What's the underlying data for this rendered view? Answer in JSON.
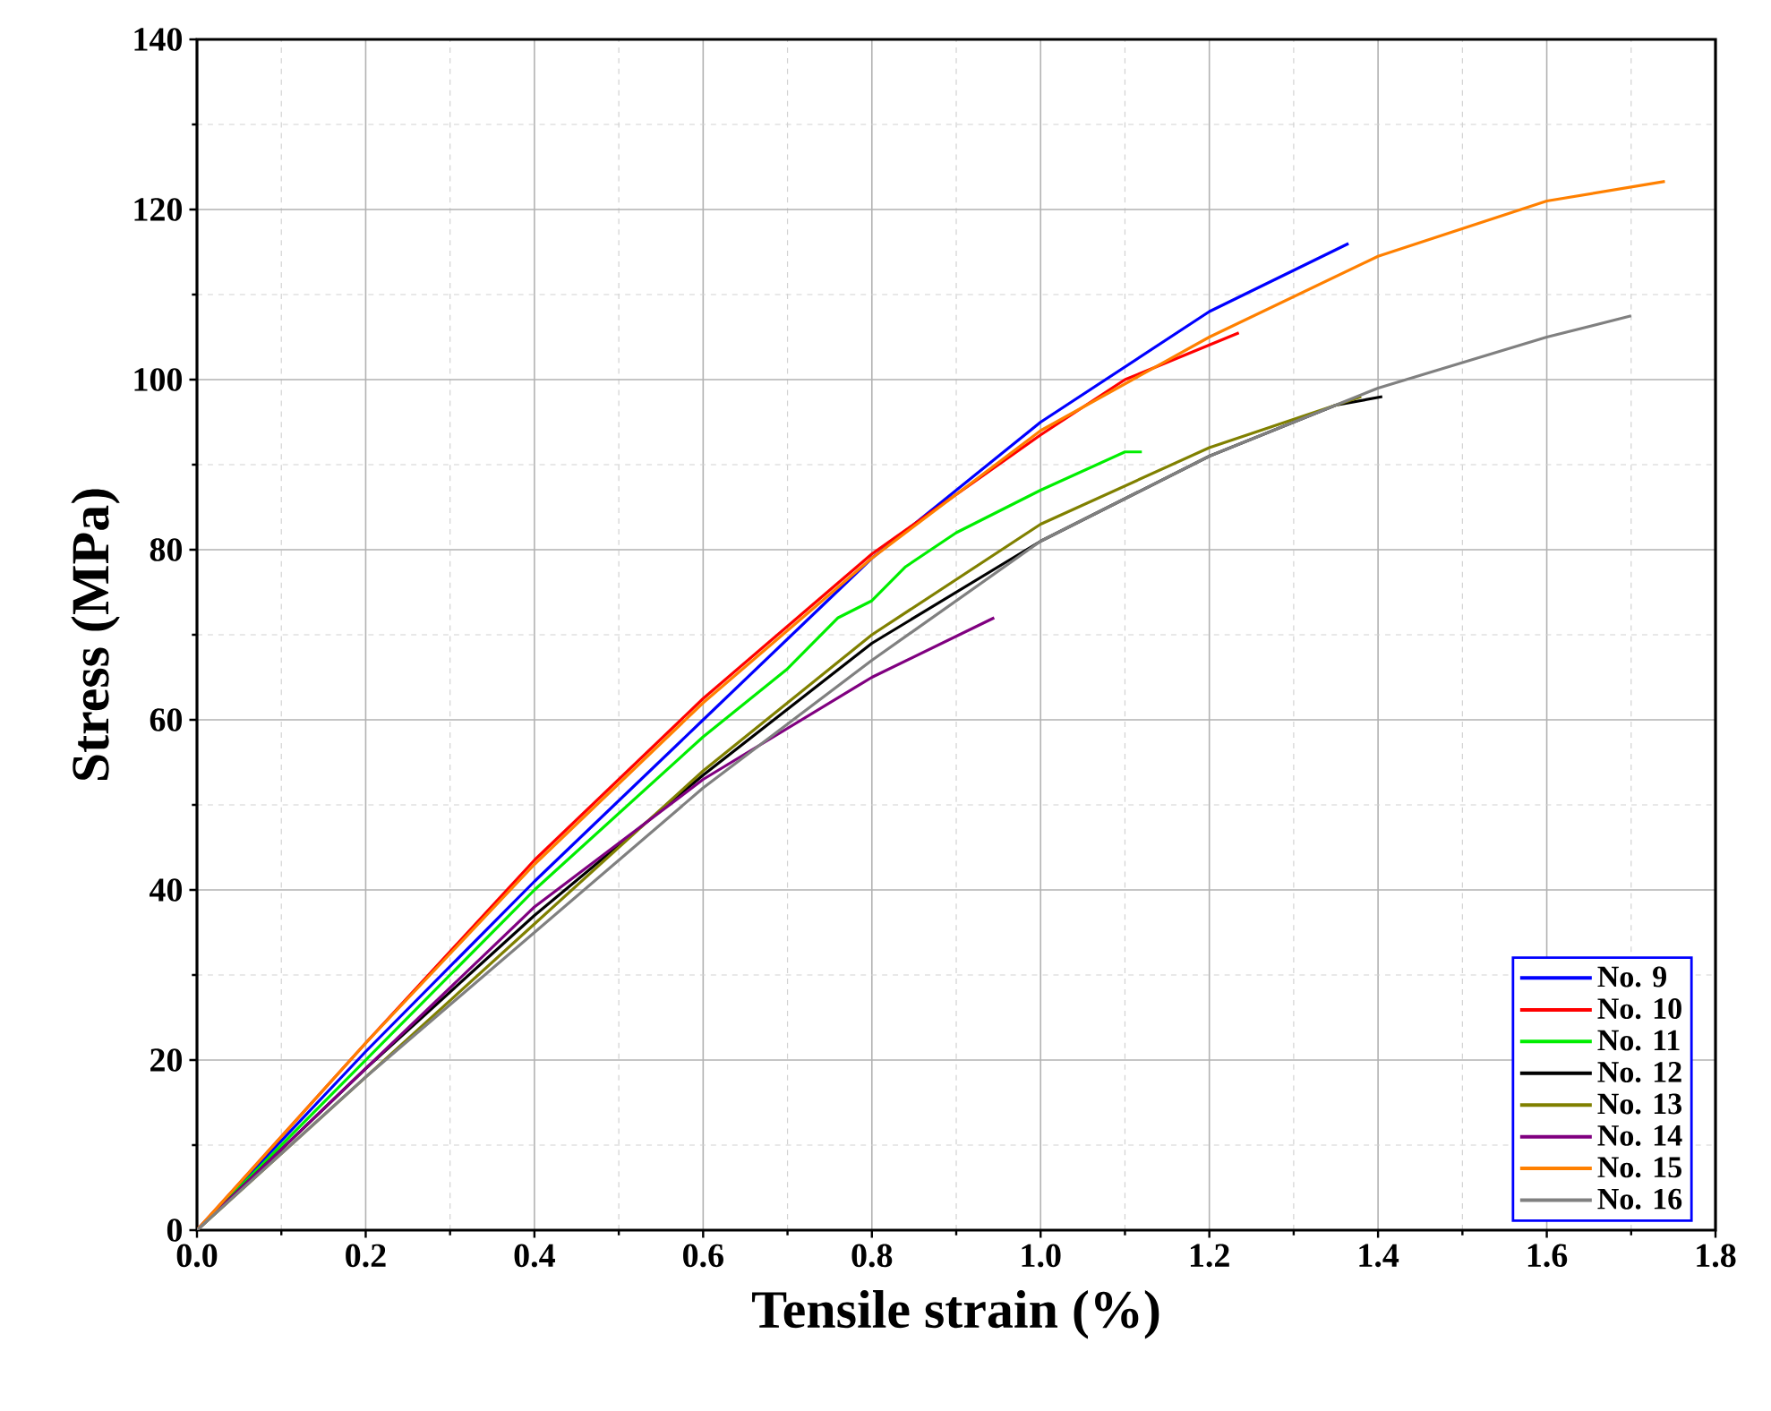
{
  "chart_data": {
    "type": "line",
    "xlabel": "Tensile strain (%)",
    "ylabel": "Stress (MPa)",
    "xlim": [
      0,
      1.8
    ],
    "ylim": [
      0,
      140
    ],
    "xticks": [
      {
        "value": 0,
        "label": "0.0"
      },
      {
        "value": 0.2,
        "label": "0.2"
      },
      {
        "value": 0.4,
        "label": "0.4"
      },
      {
        "value": 0.6,
        "label": "0.6"
      },
      {
        "value": 0.8,
        "label": "0.8"
      },
      {
        "value": 1.0,
        "label": "1.0"
      },
      {
        "value": 1.2,
        "label": "1.2"
      },
      {
        "value": 1.4,
        "label": "1.4"
      },
      {
        "value": 1.6,
        "label": "1.6"
      },
      {
        "value": 1.8,
        "label": "1.8"
      }
    ],
    "yticks": [
      0,
      20,
      40,
      60,
      80,
      100,
      120,
      140
    ],
    "grid": true,
    "legend": "bottom right",
    "marker": "none",
    "line_style": "solid",
    "series": [
      {
        "name": "No. 9",
        "color": "#0000ff",
        "x": [
          0,
          0.2,
          0.4,
          0.6,
          0.8,
          1.0,
          1.2,
          1.365
        ],
        "values": [
          0,
          21,
          41,
          60,
          79,
          95,
          108,
          116
        ]
      },
      {
        "name": "No. 10",
        "color": "#ff0000",
        "x": [
          0,
          0.2,
          0.4,
          0.6,
          0.8,
          1.0,
          1.1,
          1.235
        ],
        "values": [
          0,
          22,
          43.5,
          62.5,
          79.5,
          93.5,
          100,
          105.5
        ]
      },
      {
        "name": "No. 11",
        "color": "#00ee00",
        "x": [
          0,
          0.2,
          0.4,
          0.6,
          0.7,
          0.76,
          0.8,
          0.84,
          0.9,
          1.0,
          1.1,
          1.12
        ],
        "values": [
          0,
          20,
          40,
          58,
          66,
          72,
          74,
          78,
          82,
          87,
          91.5,
          91.5
        ]
      },
      {
        "name": "No. 12",
        "color": "#000000",
        "x": [
          0,
          0.2,
          0.4,
          0.6,
          0.8,
          1.0,
          1.2,
          1.35,
          1.405
        ],
        "values": [
          0,
          19,
          37,
          53.5,
          69,
          81,
          91,
          97,
          98
        ]
      },
      {
        "name": "No. 13",
        "color": "#808000",
        "x": [
          0,
          0.2,
          0.4,
          0.6,
          0.8,
          1.0,
          1.2,
          1.38
        ],
        "values": [
          0,
          18,
          36,
          54,
          70,
          83,
          92,
          98
        ]
      },
      {
        "name": "No. 14",
        "color": "#800080",
        "x": [
          0,
          0.2,
          0.4,
          0.6,
          0.8,
          0.945
        ],
        "values": [
          0,
          19,
          38,
          53,
          65,
          72
        ]
      },
      {
        "name": "No. 15",
        "color": "#ff8000",
        "x": [
          0,
          0.2,
          0.4,
          0.6,
          0.8,
          1.0,
          1.2,
          1.4,
          1.6,
          1.74
        ],
        "values": [
          0,
          22,
          43,
          62,
          79,
          94,
          105,
          114.5,
          121,
          123.3
        ]
      },
      {
        "name": "No. 16",
        "color": "#808080",
        "x": [
          0,
          0.2,
          0.4,
          0.6,
          0.8,
          1.0,
          1.2,
          1.4,
          1.6,
          1.7
        ],
        "values": [
          0,
          18,
          35,
          52,
          67,
          81,
          91,
          99,
          105,
          107.5
        ]
      }
    ]
  }
}
